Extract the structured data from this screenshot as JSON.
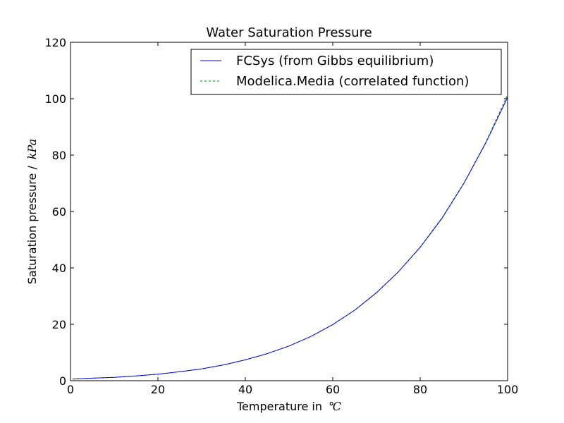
{
  "chart_data": {
    "type": "line",
    "title": "Water Saturation Pressure",
    "xlabel": "Temperature in",
    "xlabel_unit": "℃",
    "ylabel": "Saturation pressure /",
    "ylabel_unit": "kPa",
    "xlim": [
      0,
      100
    ],
    "ylim": [
      0,
      120
    ],
    "xticks": [
      "0",
      "20",
      "40",
      "60",
      "80",
      "100"
    ],
    "yticks": [
      "0",
      "20",
      "40",
      "60",
      "80",
      "100",
      "120"
    ],
    "grid": false,
    "legend_position": "top-right",
    "series": [
      {
        "name": "FCSys (from Gibbs equilibrium)",
        "color": "#0000ff",
        "linestyle": "solid",
        "x": [
          0.5,
          5,
          10,
          15,
          20,
          25,
          30,
          35,
          40,
          45,
          50,
          55,
          60,
          65,
          70,
          75,
          80,
          85,
          90,
          95,
          100
        ],
        "y": [
          0.6,
          0.9,
          1.2,
          1.7,
          2.3,
          3.2,
          4.2,
          5.6,
          7.4,
          9.6,
          12.3,
          15.7,
          19.9,
          25.0,
          31.2,
          38.6,
          47.3,
          57.6,
          70.0,
          84.3,
          100.5
        ]
      },
      {
        "name": "Modelica.Media (correlated function)",
        "color": "#008000",
        "linestyle": "dashed",
        "x": [
          0.5,
          5,
          10,
          15,
          20,
          25,
          30,
          35,
          40,
          45,
          50,
          55,
          60,
          65,
          70,
          75,
          80,
          85,
          90,
          95,
          100
        ],
        "y": [
          0.6,
          0.9,
          1.2,
          1.7,
          2.3,
          3.2,
          4.2,
          5.6,
          7.4,
          9.6,
          12.3,
          15.7,
          19.9,
          25.0,
          31.2,
          38.6,
          47.4,
          57.8,
          70.1,
          84.5,
          101.4
        ]
      }
    ]
  }
}
